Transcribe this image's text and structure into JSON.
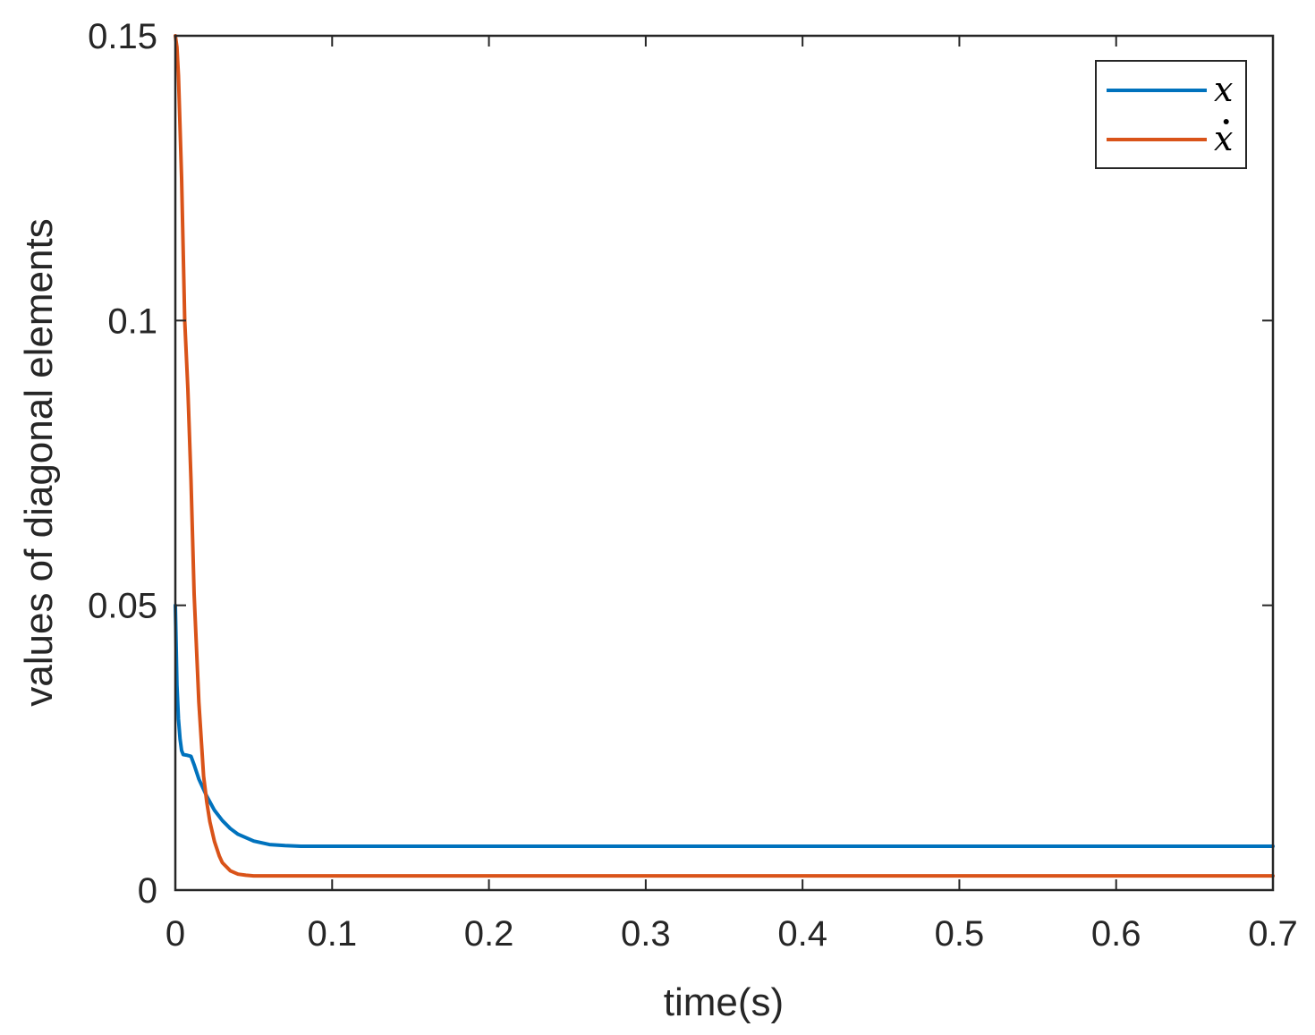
{
  "chart_data": {
    "type": "line",
    "title": "",
    "xlabel": "time(s)",
    "ylabel": "values of diagonal elements",
    "xlim": [
      0,
      0.7
    ],
    "ylim": [
      0,
      0.15
    ],
    "xticks": [
      0,
      0.1,
      0.2,
      0.3,
      0.4,
      0.5,
      0.6,
      0.7
    ],
    "xtick_labels": [
      "0",
      "0.1",
      "0.2",
      "0.3",
      "0.4",
      "0.5",
      "0.6",
      "0.7"
    ],
    "yticks": [
      0,
      0.05,
      0.1,
      0.15
    ],
    "ytick_labels": [
      "0",
      "0.05",
      "0.1",
      "0.15"
    ],
    "grid": false,
    "legend_position": "top-right",
    "series": [
      {
        "name": "x",
        "color": "#0072BD",
        "x": [
          0,
          0.001,
          0.002,
          0.003,
          0.004,
          0.005,
          0.007,
          0.01,
          0.012,
          0.015,
          0.02,
          0.025,
          0.03,
          0.035,
          0.04,
          0.05,
          0.06,
          0.07,
          0.08,
          0.1,
          0.2,
          0.3,
          0.4,
          0.5,
          0.6,
          0.7
        ],
        "y": [
          0.05,
          0.036,
          0.03,
          0.0265,
          0.0245,
          0.0238,
          0.0237,
          0.0235,
          0.022,
          0.0195,
          0.0165,
          0.014,
          0.0122,
          0.0108,
          0.0098,
          0.0086,
          0.008,
          0.0078,
          0.0077,
          0.0077,
          0.0077,
          0.0077,
          0.0077,
          0.0077,
          0.0077,
          0.0077
        ]
      },
      {
        "name": "ẋ",
        "color": "#D95319",
        "x": [
          0,
          0.001,
          0.002,
          0.004,
          0.006,
          0.008,
          0.01,
          0.012,
          0.015,
          0.018,
          0.02,
          0.022,
          0.025,
          0.028,
          0.03,
          0.035,
          0.04,
          0.045,
          0.05,
          0.06,
          0.07,
          0.1,
          0.2,
          0.3,
          0.4,
          0.5,
          0.6,
          0.7
        ],
        "y": [
          0.15,
          0.148,
          0.143,
          0.125,
          0.1,
          0.088,
          0.072,
          0.052,
          0.033,
          0.02,
          0.0155,
          0.012,
          0.0085,
          0.006,
          0.0048,
          0.0034,
          0.0028,
          0.0026,
          0.0025,
          0.0025,
          0.0025,
          0.0025,
          0.0025,
          0.0025,
          0.0025,
          0.0025,
          0.0025,
          0.0025
        ]
      }
    ]
  }
}
